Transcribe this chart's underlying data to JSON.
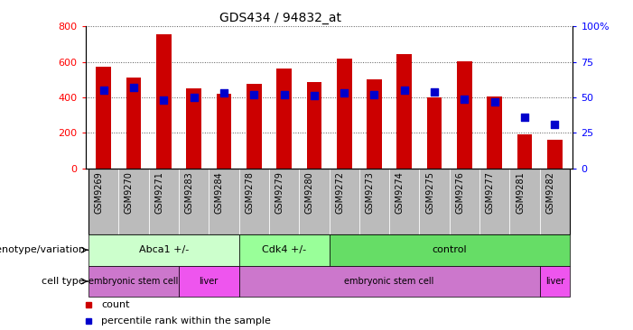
{
  "title": "GDS434 / 94832_at",
  "samples": [
    "GSM9269",
    "GSM9270",
    "GSM9271",
    "GSM9283",
    "GSM9284",
    "GSM9278",
    "GSM9279",
    "GSM9280",
    "GSM9272",
    "GSM9273",
    "GSM9274",
    "GSM9275",
    "GSM9276",
    "GSM9277",
    "GSM9281",
    "GSM9282"
  ],
  "counts": [
    575,
    510,
    755,
    450,
    420,
    475,
    560,
    485,
    620,
    500,
    645,
    400,
    605,
    405,
    190,
    160
  ],
  "percentiles": [
    55,
    57,
    48,
    50,
    53,
    52,
    52,
    51,
    53,
    52,
    55,
    54,
    49,
    47,
    36,
    31
  ],
  "ylim_left": [
    0,
    800
  ],
  "ylim_right": [
    0,
    100
  ],
  "yticks_left": [
    0,
    200,
    400,
    600,
    800
  ],
  "yticks_right": [
    0,
    25,
    50,
    75,
    100
  ],
  "bar_color": "#cc0000",
  "dot_color": "#0000cc",
  "grid_color": "#000000",
  "background_color": "#ffffff",
  "xtick_bg_color": "#bbbbbb",
  "genotype_groups": [
    {
      "label": "Abca1 +/-",
      "start": 0,
      "end": 5,
      "color": "#ccffcc"
    },
    {
      "label": "Cdk4 +/-",
      "start": 5,
      "end": 8,
      "color": "#99ff99"
    },
    {
      "label": "control",
      "start": 8,
      "end": 16,
      "color": "#66dd66"
    }
  ],
  "celltype_groups": [
    {
      "label": "embryonic stem cell",
      "start": 0,
      "end": 3,
      "color": "#cc77cc"
    },
    {
      "label": "liver",
      "start": 3,
      "end": 5,
      "color": "#ee55ee"
    },
    {
      "label": "embryonic stem cell",
      "start": 5,
      "end": 15,
      "color": "#cc77cc"
    },
    {
      "label": "liver",
      "start": 15,
      "end": 16,
      "color": "#ee55ee"
    }
  ],
  "xlabel_row1": "genotype/variation",
  "xlabel_row2": "cell type",
  "bar_width": 0.5,
  "dot_size": 30
}
